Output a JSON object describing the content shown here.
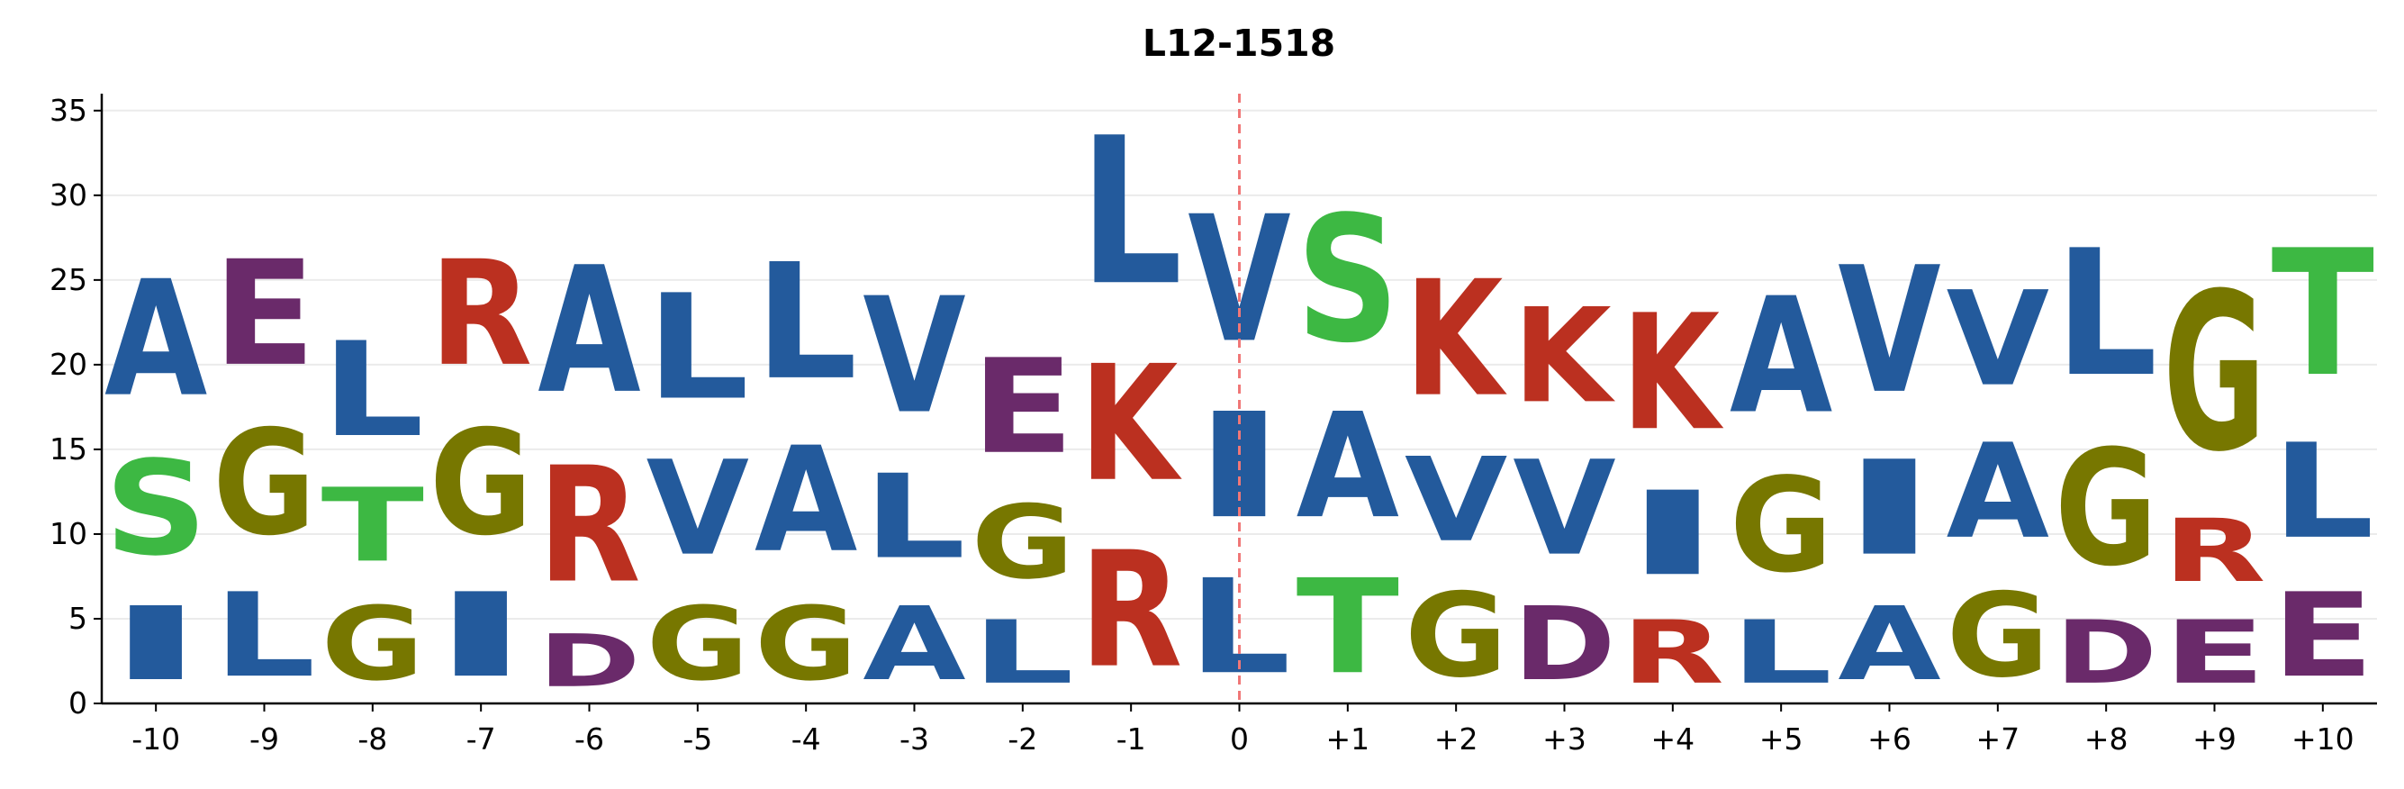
{
  "chart_data": {
    "type": "sequence-logo",
    "title": "L12-1518",
    "xlabel": "",
    "ylabel": "",
    "ylim": [
      0,
      36
    ],
    "y_ticks": [
      0,
      5,
      10,
      15,
      20,
      25,
      30,
      35
    ],
    "grid": "horizontal",
    "reference_line_position": "0",
    "colors": {
      "hydrophobic": "#235a9c",
      "polar": "#3db843",
      "glycine": "#777700",
      "basic": "#bb3020",
      "acidic": "#6a2a6a",
      "reference_line": "#f07777",
      "grid": "#ebebeb",
      "axis": "#000000"
    },
    "positions": [
      {
        "label": "-10",
        "stack": [
          {
            "letter": "I",
            "height": 7
          },
          {
            "letter": "S",
            "height": 9
          },
          {
            "letter": "A",
            "height": 11
          }
        ]
      },
      {
        "label": "-9",
        "stack": [
          {
            "letter": "L",
            "height": 8
          },
          {
            "letter": "G",
            "height": 10
          },
          {
            "letter": "E",
            "height": 10
          }
        ]
      },
      {
        "label": "-8",
        "stack": [
          {
            "letter": "G",
            "height": 7
          },
          {
            "letter": "T",
            "height": 7
          },
          {
            "letter": "L",
            "height": 9
          }
        ]
      },
      {
        "label": "-7",
        "stack": [
          {
            "letter": "I",
            "height": 8
          },
          {
            "letter": "G",
            "height": 10
          },
          {
            "letter": "R",
            "height": 10
          }
        ]
      },
      {
        "label": "-6",
        "stack": [
          {
            "letter": "D",
            "height": 5
          },
          {
            "letter": "R",
            "height": 11
          },
          {
            "letter": "A",
            "height": 12
          }
        ]
      },
      {
        "label": "-5",
        "stack": [
          {
            "letter": "G",
            "height": 7
          },
          {
            "letter": "V",
            "height": 9
          },
          {
            "letter": "L",
            "height": 10
          }
        ]
      },
      {
        "label": "-4",
        "stack": [
          {
            "letter": "G",
            "height": 7
          },
          {
            "letter": "A",
            "height": 10
          },
          {
            "letter": "L",
            "height": 11
          }
        ]
      },
      {
        "label": "-3",
        "stack": [
          {
            "letter": "A",
            "height": 7
          },
          {
            "letter": "L",
            "height": 8
          },
          {
            "letter": "V",
            "height": 11
          }
        ]
      },
      {
        "label": "-2",
        "stack": [
          {
            "letter": "L",
            "height": 6
          },
          {
            "letter": "G",
            "height": 7
          },
          {
            "letter": "E",
            "height": 9
          }
        ]
      },
      {
        "label": "-1",
        "stack": [
          {
            "letter": "R",
            "height": 11
          },
          {
            "letter": "K",
            "height": 11
          },
          {
            "letter": "L",
            "height": 14
          }
        ]
      },
      {
        "label": "0",
        "stack": [
          {
            "letter": "L",
            "height": 9
          },
          {
            "letter": "I",
            "height": 10
          },
          {
            "letter": "V",
            "height": 12
          }
        ]
      },
      {
        "label": "+1",
        "stack": [
          {
            "letter": "T",
            "height": 9
          },
          {
            "letter": "A",
            "height": 10
          },
          {
            "letter": "S",
            "height": 12
          }
        ]
      },
      {
        "label": "+2",
        "stack": [
          {
            "letter": "G",
            "height": 8
          },
          {
            "letter": "V",
            "height": 8
          },
          {
            "letter": "K",
            "height": 11
          }
        ]
      },
      {
        "label": "+3",
        "stack": [
          {
            "letter": "D",
            "height": 7
          },
          {
            "letter": "V",
            "height": 9
          },
          {
            "letter": "K",
            "height": 9
          }
        ]
      },
      {
        "label": "+4",
        "stack": [
          {
            "letter": "R",
            "height": 6
          },
          {
            "letter": "I",
            "height": 8
          },
          {
            "letter": "K",
            "height": 11
          }
        ]
      },
      {
        "label": "+5",
        "stack": [
          {
            "letter": "L",
            "height": 6
          },
          {
            "letter": "G",
            "height": 9
          },
          {
            "letter": "A",
            "height": 11
          }
        ]
      },
      {
        "label": "+6",
        "stack": [
          {
            "letter": "A",
            "height": 7
          },
          {
            "letter": "I",
            "height": 9
          },
          {
            "letter": "V",
            "height": 12
          }
        ]
      },
      {
        "label": "+7",
        "stack": [
          {
            "letter": "G",
            "height": 8
          },
          {
            "letter": "A",
            "height": 9
          },
          {
            "letter": "V",
            "height": 9
          }
        ]
      },
      {
        "label": "+8",
        "stack": [
          {
            "letter": "D",
            "height": 6
          },
          {
            "letter": "G",
            "height": 11
          },
          {
            "letter": "L",
            "height": 12
          }
        ]
      },
      {
        "label": "+9",
        "stack": [
          {
            "letter": "E",
            "height": 6
          },
          {
            "letter": "R",
            "height": 6
          },
          {
            "letter": "G",
            "height": 15
          }
        ]
      },
      {
        "label": "+10",
        "stack": [
          {
            "letter": "E",
            "height": 8
          },
          {
            "letter": "L",
            "height": 9
          },
          {
            "letter": "T",
            "height": 12
          }
        ]
      }
    ]
  }
}
